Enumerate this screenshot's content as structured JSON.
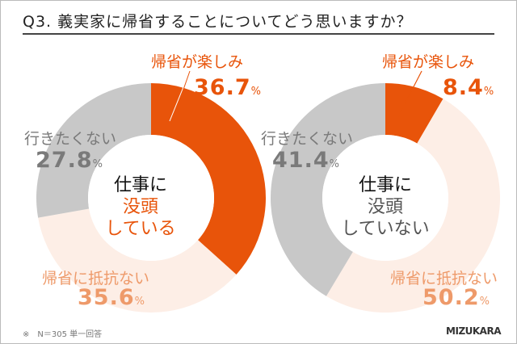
{
  "title": "Q3. 義実家に帰省することについてどう思いますか？",
  "note": "※　N＝305 単一回答",
  "logo": "MIZUKARA",
  "colors": {
    "enjoy": "#E8540A",
    "no_resistance": "#FDEEE6",
    "dont_want": "#C8C8C8",
    "no_resistance_text": "#EE9A6A",
    "dont_want_text": "#7a7a7a"
  },
  "pct_unit": "%",
  "chart_data": [
    {
      "type": "pie",
      "donut": true,
      "center_label": [
        "仕事に",
        "没頭",
        "している"
      ],
      "categories": [
        "帰省が楽しみ",
        "帰省に抵抗ない",
        "行きたくない"
      ],
      "values": [
        36.7,
        35.6,
        27.8
      ],
      "value_labels": [
        "36.7",
        "35.6",
        "27.8"
      ]
    },
    {
      "type": "pie",
      "donut": true,
      "center_label": [
        "仕事に",
        "没頭",
        "していない"
      ],
      "categories": [
        "帰省が楽しみ",
        "帰省に抵抗ない",
        "行きたくない"
      ],
      "values": [
        8.4,
        50.2,
        41.4
      ],
      "value_labels": [
        "8.4",
        "50.2",
        "41.4"
      ]
    }
  ]
}
